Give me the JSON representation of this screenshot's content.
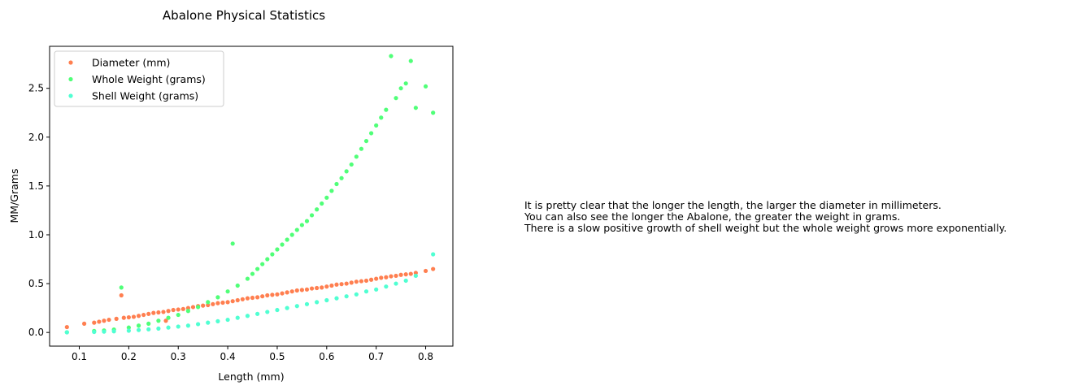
{
  "colors": {
    "diameter": "#ff7f50",
    "whole_weight": "#50ff78",
    "shell_weight": "#50ffd2"
  },
  "chart_data": {
    "type": "scatter",
    "title": "Abalone Physical Statistics",
    "xlabel": "Length (mm)",
    "ylabel": "MM/Grams",
    "xlim": [
      0.04,
      0.855
    ],
    "ylim": [
      -0.14,
      2.93
    ],
    "xticks": [
      "0.1",
      "0.2",
      "0.3",
      "0.4",
      "0.5",
      "0.6",
      "0.7",
      "0.8"
    ],
    "yticks": [
      "0.0",
      "0.5",
      "1.0",
      "1.5",
      "2.0",
      "2.5"
    ],
    "grid": false,
    "legend_position": "upper-left",
    "series": [
      {
        "name": "Diameter (mm)",
        "color": "#ff7f50",
        "x": [
          0.075,
          0.11,
          0.13,
          0.14,
          0.15,
          0.16,
          0.175,
          0.185,
          0.19,
          0.2,
          0.21,
          0.22,
          0.23,
          0.24,
          0.25,
          0.26,
          0.27,
          0.275,
          0.28,
          0.29,
          0.3,
          0.31,
          0.32,
          0.33,
          0.34,
          0.35,
          0.36,
          0.37,
          0.38,
          0.39,
          0.4,
          0.41,
          0.42,
          0.43,
          0.44,
          0.45,
          0.46,
          0.47,
          0.48,
          0.49,
          0.5,
          0.51,
          0.52,
          0.53,
          0.54,
          0.55,
          0.56,
          0.57,
          0.58,
          0.59,
          0.6,
          0.61,
          0.62,
          0.63,
          0.64,
          0.65,
          0.66,
          0.67,
          0.68,
          0.69,
          0.7,
          0.71,
          0.72,
          0.73,
          0.74,
          0.75,
          0.76,
          0.77,
          0.78,
          0.8,
          0.815
        ],
        "y": [
          0.055,
          0.09,
          0.1,
          0.11,
          0.12,
          0.13,
          0.14,
          0.38,
          0.15,
          0.155,
          0.16,
          0.17,
          0.18,
          0.19,
          0.2,
          0.205,
          0.21,
          0.12,
          0.22,
          0.23,
          0.235,
          0.24,
          0.25,
          0.26,
          0.27,
          0.275,
          0.28,
          0.29,
          0.3,
          0.305,
          0.31,
          0.32,
          0.33,
          0.34,
          0.35,
          0.355,
          0.36,
          0.37,
          0.38,
          0.385,
          0.39,
          0.4,
          0.41,
          0.42,
          0.43,
          0.435,
          0.44,
          0.45,
          0.455,
          0.46,
          0.47,
          0.48,
          0.49,
          0.495,
          0.5,
          0.51,
          0.52,
          0.525,
          0.53,
          0.54,
          0.55,
          0.56,
          0.565,
          0.575,
          0.58,
          0.59,
          0.595,
          0.6,
          0.61,
          0.63,
          0.65
        ]
      },
      {
        "name": "Whole Weight (grams)",
        "color": "#50ff78",
        "x": [
          0.075,
          0.13,
          0.15,
          0.17,
          0.185,
          0.2,
          0.22,
          0.24,
          0.26,
          0.28,
          0.3,
          0.32,
          0.34,
          0.36,
          0.38,
          0.4,
          0.41,
          0.42,
          0.44,
          0.45,
          0.46,
          0.47,
          0.48,
          0.49,
          0.5,
          0.51,
          0.52,
          0.53,
          0.54,
          0.55,
          0.56,
          0.57,
          0.58,
          0.59,
          0.6,
          0.61,
          0.62,
          0.63,
          0.64,
          0.65,
          0.66,
          0.67,
          0.68,
          0.69,
          0.7,
          0.71,
          0.72,
          0.73,
          0.74,
          0.75,
          0.76,
          0.77,
          0.78,
          0.8,
          0.815
        ],
        "y": [
          0.002,
          0.015,
          0.02,
          0.03,
          0.46,
          0.05,
          0.07,
          0.09,
          0.12,
          0.15,
          0.18,
          0.22,
          0.26,
          0.31,
          0.36,
          0.42,
          0.91,
          0.48,
          0.55,
          0.6,
          0.65,
          0.7,
          0.75,
          0.8,
          0.85,
          0.9,
          0.95,
          1.0,
          1.05,
          1.1,
          1.14,
          1.2,
          1.26,
          1.32,
          1.38,
          1.45,
          1.52,
          1.58,
          1.65,
          1.72,
          1.8,
          1.88,
          1.96,
          2.04,
          2.12,
          2.2,
          2.28,
          2.83,
          2.4,
          2.5,
          2.55,
          2.78,
          2.3,
          2.52,
          2.25
        ]
      },
      {
        "name": "Shell Weight (grams)",
        "color": "#50ffd2",
        "x": [
          0.075,
          0.13,
          0.15,
          0.17,
          0.2,
          0.22,
          0.24,
          0.26,
          0.28,
          0.3,
          0.32,
          0.34,
          0.36,
          0.38,
          0.4,
          0.42,
          0.44,
          0.46,
          0.48,
          0.5,
          0.52,
          0.54,
          0.56,
          0.58,
          0.6,
          0.62,
          0.64,
          0.66,
          0.68,
          0.7,
          0.72,
          0.74,
          0.76,
          0.78,
          0.815
        ],
        "y": [
          0.0015,
          0.005,
          0.008,
          0.012,
          0.018,
          0.025,
          0.032,
          0.04,
          0.05,
          0.06,
          0.07,
          0.085,
          0.1,
          0.115,
          0.13,
          0.15,
          0.17,
          0.19,
          0.21,
          0.23,
          0.25,
          0.27,
          0.29,
          0.31,
          0.33,
          0.35,
          0.37,
          0.39,
          0.42,
          0.44,
          0.47,
          0.5,
          0.53,
          0.58,
          0.8
        ]
      }
    ]
  },
  "note": {
    "lines": [
      "It is pretty clear that the longer the length, the larger the diameter in millimeters.",
      "You can also see the longer the Abalone, the greater the weight in grams.",
      "There is a slow positive growth of shell weight but the whole weight grows more exponentially."
    ]
  }
}
